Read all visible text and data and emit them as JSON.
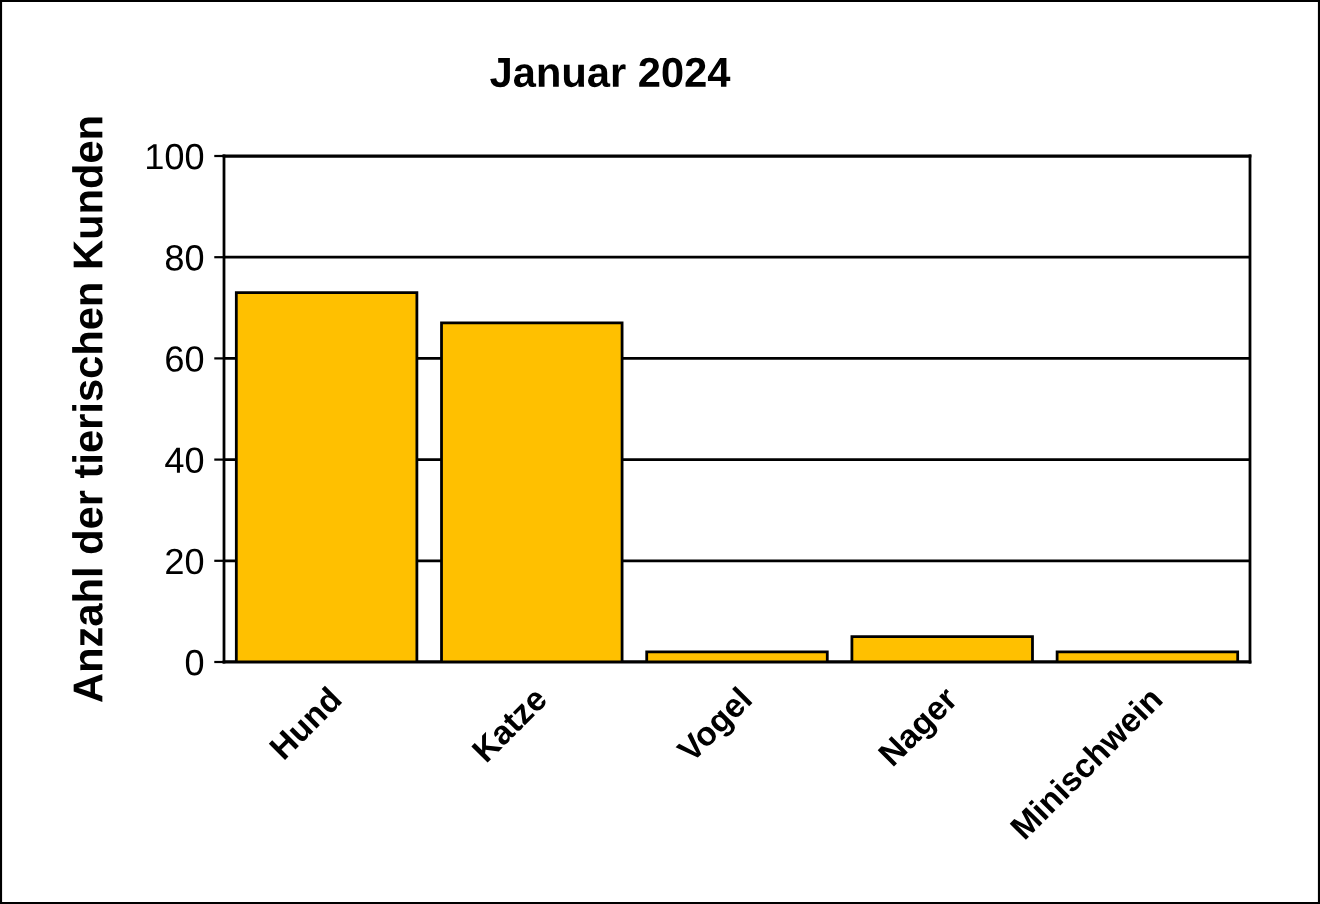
{
  "chart_data": {
    "type": "bar",
    "title": "Januar 2024",
    "ylabel": "Anzahl der tierischen Kunden",
    "categories": [
      "Hund",
      "Katze",
      "Vogel",
      "Nager",
      "Minischwein"
    ],
    "values": [
      73,
      67,
      2,
      5,
      2
    ],
    "color": "#ffc000",
    "ylim": [
      0,
      100
    ],
    "yticks": [
      0,
      20,
      40,
      60,
      80,
      100
    ],
    "grid": "y",
    "legend": false
  }
}
